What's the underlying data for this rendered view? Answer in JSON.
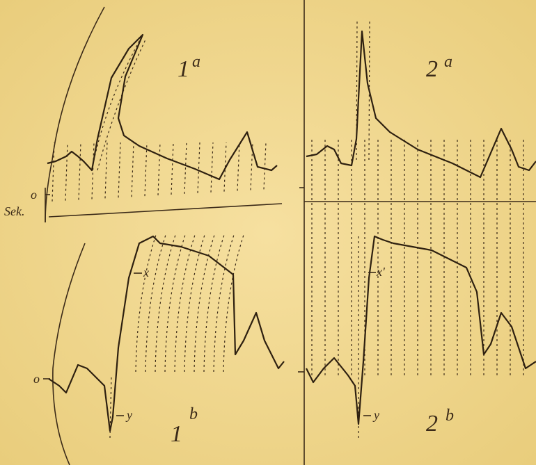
{
  "panels": [
    {
      "number": "1",
      "letter": "a"
    },
    {
      "number": "2",
      "letter": "a"
    },
    {
      "number": "1",
      "letter": "b"
    },
    {
      "number": "2",
      "letter": "b"
    }
  ],
  "axis_labels": {
    "zero_top": "o",
    "seconds": "Sek.",
    "zero_bottom": "o"
  },
  "markers": {
    "x_left": "x",
    "x_right": "x'",
    "y_left": "y",
    "y_right": "y"
  }
}
